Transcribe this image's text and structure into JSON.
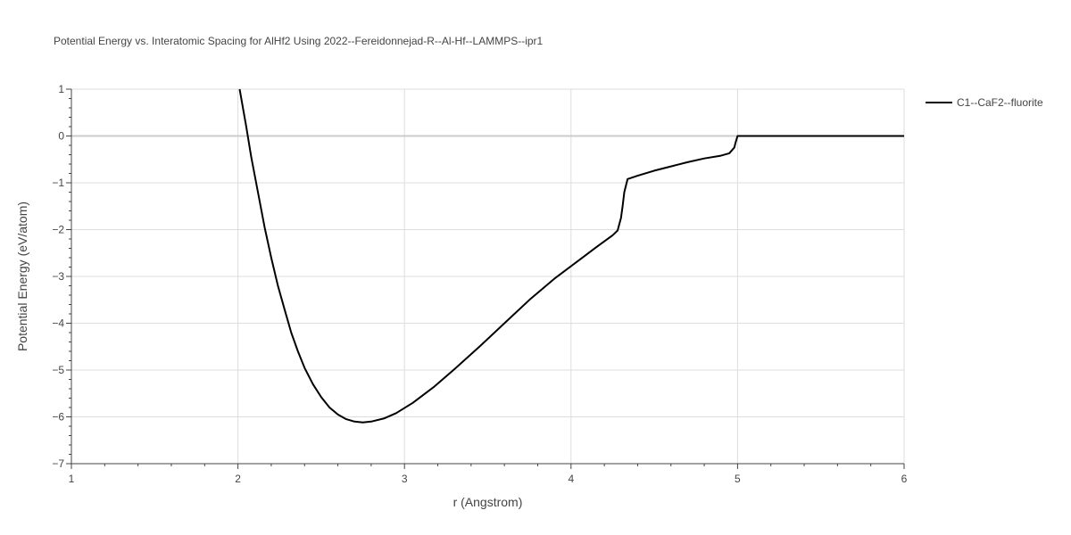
{
  "chart_data": {
    "type": "line",
    "title": "Potential Energy vs. Interatomic Spacing for AlHf2 Using 2022--Fereidonnejad-R--Al-Hf--LAMMPS--ipr1",
    "xlabel": "r (Angstrom)",
    "ylabel": "Potential Energy (eV/atom)",
    "xlim": [
      1,
      6
    ],
    "ylim": [
      -7,
      1
    ],
    "x_ticks": [
      1,
      2,
      3,
      4,
      5,
      6
    ],
    "y_ticks": [
      1,
      0,
      -1,
      -2,
      -3,
      -4,
      -5,
      -6,
      -7
    ],
    "x_tick_labels": [
      "1",
      "2",
      "3",
      "4",
      "5",
      "6"
    ],
    "y_tick_labels": [
      "1",
      "0",
      "−1",
      "−2",
      "−3",
      "−4",
      "−5",
      "−6",
      "−7"
    ],
    "grid": true,
    "legend_position": "top-right",
    "series": [
      {
        "name": "C1--CaF2--fluorite",
        "color": "#000000",
        "points": [
          [
            2.01,
            1.0
          ],
          [
            2.05,
            0.2
          ],
          [
            2.08,
            -0.45
          ],
          [
            2.12,
            -1.2
          ],
          [
            2.16,
            -1.95
          ],
          [
            2.2,
            -2.6
          ],
          [
            2.24,
            -3.2
          ],
          [
            2.28,
            -3.7
          ],
          [
            2.32,
            -4.2
          ],
          [
            2.36,
            -4.6
          ],
          [
            2.4,
            -4.95
          ],
          [
            2.45,
            -5.3
          ],
          [
            2.5,
            -5.58
          ],
          [
            2.55,
            -5.8
          ],
          [
            2.6,
            -5.95
          ],
          [
            2.65,
            -6.05
          ],
          [
            2.7,
            -6.1
          ],
          [
            2.75,
            -6.12
          ],
          [
            2.8,
            -6.1
          ],
          [
            2.88,
            -6.03
          ],
          [
            2.95,
            -5.92
          ],
          [
            3.05,
            -5.7
          ],
          [
            3.18,
            -5.35
          ],
          [
            3.3,
            -4.98
          ],
          [
            3.45,
            -4.5
          ],
          [
            3.6,
            -4.0
          ],
          [
            3.75,
            -3.5
          ],
          [
            3.9,
            -3.05
          ],
          [
            4.05,
            -2.65
          ],
          [
            4.15,
            -2.38
          ],
          [
            4.25,
            -2.12
          ],
          [
            4.28,
            -2.02
          ],
          [
            4.3,
            -1.75
          ],
          [
            4.31,
            -1.5
          ],
          [
            4.32,
            -1.2
          ],
          [
            4.34,
            -0.92
          ],
          [
            4.4,
            -0.85
          ],
          [
            4.5,
            -0.74
          ],
          [
            4.6,
            -0.65
          ],
          [
            4.7,
            -0.56
          ],
          [
            4.8,
            -0.48
          ],
          [
            4.9,
            -0.42
          ],
          [
            4.95,
            -0.37
          ],
          [
            4.98,
            -0.25
          ],
          [
            4.99,
            -0.12
          ],
          [
            5.0,
            0.0
          ],
          [
            5.5,
            0.0
          ],
          [
            6.0,
            0.0
          ]
        ]
      }
    ]
  }
}
